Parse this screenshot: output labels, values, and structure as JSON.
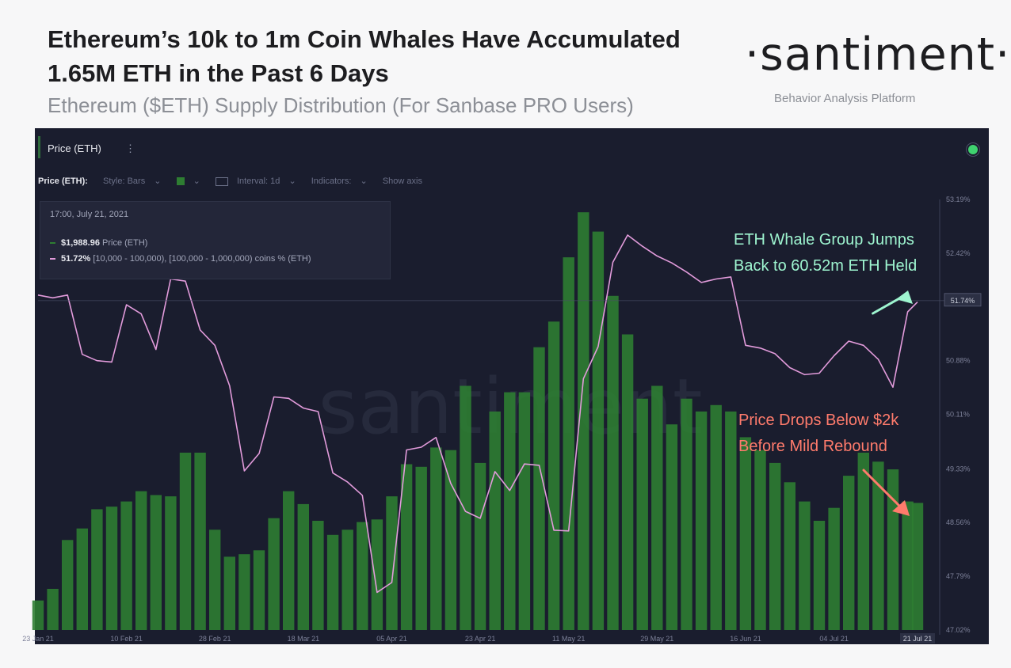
{
  "header": {
    "title": "Ethereum’s 10k to 1m Coin Whales Have Accumulated 1.65M ETH in the Past 6 Days",
    "subtitle": "Ethereum ($ETH) Supply Distribution (For Sanbase PRO Users)",
    "brand": "·santiment·",
    "brand_tagline": "Behavior Analysis Platform"
  },
  "panel": {
    "title": "Price (ETH)",
    "menu_icon": "⋮",
    "toolbar": {
      "metric_label": "Price (ETH):",
      "style_label": "Style: Bars",
      "chevron": "⌄",
      "interval_label": "Interval: 1d",
      "indicators_label": "Indicators:",
      "show_axis_label": "Show axis"
    },
    "tooltip": {
      "date": "17:00, July 21, 2021",
      "price_value": "$1,988.96",
      "price_label": "Price (ETH)",
      "supply_value": "51.72%",
      "supply_label": "[10,000 - 100,000), [100,000 - 1,000,000) coins % (ETH)"
    },
    "watermark": "santiment",
    "annotations": {
      "whale_line1": "ETH Whale Group Jumps",
      "whale_line2": "Back to 60.52m ETH Held",
      "price_line1": "Price Drops Below $2k",
      "price_line2": "Before Mild Rebound"
    },
    "colors": {
      "background": "#1a1d2e",
      "price_bars": "#2e7d32",
      "supply_line": "#e29bdb",
      "whale_annotation": "#9ef5d0",
      "price_annotation": "#ff7b6c",
      "status_dot": "#3fd26f"
    }
  },
  "chart_data": {
    "type": "bar",
    "x_ticks": [
      "23 Jan 21",
      "10 Feb 21",
      "28 Feb 21",
      "18 Mar 21",
      "05 Apr 21",
      "23 Apr 21",
      "11 May 21",
      "29 May 21",
      "16 Jun 21",
      "04 Jul 21",
      "21 Jul 21"
    ],
    "y_right_ticks": [
      "53.19%",
      "52.42%",
      "51.74%",
      "50.88%",
      "50.11%",
      "49.33%",
      "48.56%",
      "47.79%",
      "47.02%"
    ],
    "y_right_range": [
      47.02,
      53.19
    ],
    "price_range": [
      1000,
      4350
    ],
    "x_range": [
      "2021-01-23",
      "2021-07-21"
    ],
    "series": [
      {
        "name": "Price (ETH)",
        "type": "bar",
        "unit": "USD",
        "points": [
          [
            "2021-01-23",
            1230
          ],
          [
            "2021-01-26",
            1320
          ],
          [
            "2021-01-29",
            1700
          ],
          [
            "2021-02-01",
            1790
          ],
          [
            "2021-02-04",
            1940
          ],
          [
            "2021-02-07",
            1960
          ],
          [
            "2021-02-10",
            2000
          ],
          [
            "2021-02-13",
            2080
          ],
          [
            "2021-02-16",
            2050
          ],
          [
            "2021-02-19",
            2040
          ],
          [
            "2021-02-22",
            2380
          ],
          [
            "2021-02-25",
            2380
          ],
          [
            "2021-02-28",
            1780
          ],
          [
            "2021-03-03",
            1570
          ],
          [
            "2021-03-06",
            1590
          ],
          [
            "2021-03-09",
            1620
          ],
          [
            "2021-03-12",
            1870
          ],
          [
            "2021-03-15",
            2080
          ],
          [
            "2021-03-18",
            1980
          ],
          [
            "2021-03-21",
            1850
          ],
          [
            "2021-03-24",
            1740
          ],
          [
            "2021-03-27",
            1780
          ],
          [
            "2021-03-30",
            1840
          ],
          [
            "2021-04-02",
            1860
          ],
          [
            "2021-04-05",
            2040
          ],
          [
            "2021-04-08",
            2290
          ],
          [
            "2021-04-11",
            2270
          ],
          [
            "2021-04-14",
            2420
          ],
          [
            "2021-04-17",
            2400
          ],
          [
            "2021-04-20",
            2900
          ],
          [
            "2021-04-23",
            2300
          ],
          [
            "2021-04-26",
            2700
          ],
          [
            "2021-04-29",
            2850
          ],
          [
            "2021-05-02",
            2850
          ],
          [
            "2021-05-05",
            3200
          ],
          [
            "2021-05-08",
            3400
          ],
          [
            "2021-05-11",
            3900
          ],
          [
            "2021-05-14",
            4250
          ],
          [
            "2021-05-17",
            4100
          ],
          [
            "2021-05-20",
            3600
          ],
          [
            "2021-05-23",
            3300
          ],
          [
            "2021-05-26",
            2800
          ],
          [
            "2021-05-29",
            2900
          ],
          [
            "2021-06-01",
            2600
          ],
          [
            "2021-06-04",
            2800
          ],
          [
            "2021-06-07",
            2700
          ],
          [
            "2021-06-10",
            2750
          ],
          [
            "2021-06-13",
            2700
          ],
          [
            "2021-06-16",
            2500
          ],
          [
            "2021-06-19",
            2400
          ],
          [
            "2021-06-22",
            2300
          ],
          [
            "2021-06-25",
            2150
          ],
          [
            "2021-06-28",
            2000
          ],
          [
            "2021-07-01",
            1850
          ],
          [
            "2021-07-04",
            1950
          ],
          [
            "2021-07-07",
            2200
          ],
          [
            "2021-07-10",
            2380
          ],
          [
            "2021-07-13",
            2310
          ],
          [
            "2021-07-16",
            2250
          ],
          [
            "2021-07-19",
            2000
          ],
          [
            "2021-07-21",
            1989
          ]
        ]
      },
      {
        "name": "[10,000 - 100,000), [100,000 - 1,000,000) coins % (ETH)",
        "type": "line",
        "unit": "%",
        "points": [
          [
            "2021-01-23",
            51.82
          ],
          [
            "2021-01-26",
            51.78
          ],
          [
            "2021-01-29",
            51.82
          ],
          [
            "2021-02-01",
            50.97
          ],
          [
            "2021-02-04",
            50.88
          ],
          [
            "2021-02-07",
            50.86
          ],
          [
            "2021-02-10",
            51.68
          ],
          [
            "2021-02-13",
            51.55
          ],
          [
            "2021-02-16",
            51.04
          ],
          [
            "2021-02-19",
            52.05
          ],
          [
            "2021-02-22",
            52.02
          ],
          [
            "2021-02-25",
            51.32
          ],
          [
            "2021-02-28",
            51.1
          ],
          [
            "2021-03-03",
            50.52
          ],
          [
            "2021-03-06",
            49.3
          ],
          [
            "2021-03-09",
            49.55
          ],
          [
            "2021-03-12",
            50.36
          ],
          [
            "2021-03-15",
            50.34
          ],
          [
            "2021-03-18",
            50.2
          ],
          [
            "2021-03-21",
            50.15
          ],
          [
            "2021-03-24",
            49.27
          ],
          [
            "2021-03-27",
            49.14
          ],
          [
            "2021-03-30",
            48.95
          ],
          [
            "2021-04-02",
            47.56
          ],
          [
            "2021-04-05",
            47.7
          ],
          [
            "2021-04-08",
            49.6
          ],
          [
            "2021-04-11",
            49.64
          ],
          [
            "2021-04-14",
            49.78
          ],
          [
            "2021-04-17",
            49.12
          ],
          [
            "2021-04-20",
            48.72
          ],
          [
            "2021-04-23",
            48.62
          ],
          [
            "2021-04-26",
            49.29
          ],
          [
            "2021-04-29",
            49.02
          ],
          [
            "2021-05-02",
            49.4
          ],
          [
            "2021-05-05",
            49.38
          ],
          [
            "2021-05-08",
            48.45
          ],
          [
            "2021-05-11",
            48.44
          ],
          [
            "2021-05-14",
            50.62
          ],
          [
            "2021-05-17",
            51.08
          ],
          [
            "2021-05-20",
            52.29
          ],
          [
            "2021-05-23",
            52.68
          ],
          [
            "2021-05-26",
            52.52
          ],
          [
            "2021-05-29",
            52.38
          ],
          [
            "2021-06-01",
            52.28
          ],
          [
            "2021-06-04",
            52.15
          ],
          [
            "2021-06-07",
            52.0
          ],
          [
            "2021-06-10",
            52.05
          ],
          [
            "2021-06-13",
            52.08
          ],
          [
            "2021-06-16",
            51.1
          ],
          [
            "2021-06-19",
            51.06
          ],
          [
            "2021-06-22",
            50.98
          ],
          [
            "2021-06-25",
            50.78
          ],
          [
            "2021-06-28",
            50.68
          ],
          [
            "2021-07-01",
            50.7
          ],
          [
            "2021-07-04",
            50.95
          ],
          [
            "2021-07-07",
            51.16
          ],
          [
            "2021-07-10",
            51.1
          ],
          [
            "2021-07-13",
            50.9
          ],
          [
            "2021-07-16",
            50.5
          ],
          [
            "2021-07-19",
            51.58
          ],
          [
            "2021-07-21",
            51.72
          ]
        ]
      }
    ]
  }
}
